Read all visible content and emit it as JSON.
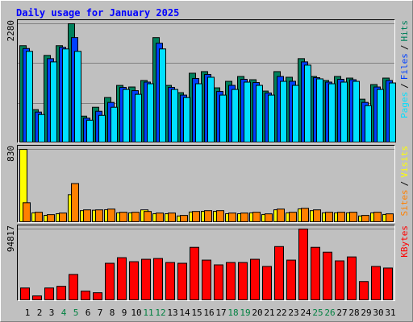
{
  "title": "Daily usage for January 2025",
  "legend_separator": "/",
  "categories": [
    "1",
    "2",
    "3",
    "4",
    "5",
    "6",
    "7",
    "8",
    "9",
    "10",
    "11",
    "12",
    "13",
    "14",
    "15",
    "16",
    "17",
    "18",
    "19",
    "20",
    "21",
    "22",
    "23",
    "24",
    "25",
    "26",
    "27",
    "28",
    "29",
    "30",
    "31"
  ],
  "highlighted_categories": [
    "4",
    "5",
    "11",
    "12",
    "18",
    "19",
    "25",
    "26"
  ],
  "highlight_color": "#008040",
  "chart_data": [
    {
      "type": "bar",
      "ylim": [
        0,
        2280
      ],
      "yticks": [
        2280
      ],
      "series": [
        {
          "name": "Hits",
          "color": "#00805c",
          "values": [
            1860,
            636,
            1674,
            1860,
            2280,
            512,
            682,
            868,
            1100,
            1070,
            1194,
            2015,
            1100,
            961,
            1333,
            1364,
            1054,
            1178,
            1271,
            1209,
            992,
            1364,
            1256,
            1612,
            1271,
            1194,
            1271,
            1240,
            837,
            1116,
            1240
          ]
        },
        {
          "name": "Files",
          "color": "#0040ff",
          "values": [
            1806,
            590,
            1612,
            1829,
            2016,
            473,
            605,
            775,
            1062,
            1000,
            1163,
            1907,
            1062,
            915,
            1233,
            1310,
            985,
            1101,
            1217,
            1155,
            954,
            1271,
            1179,
            1550,
            1248,
            1163,
            1217,
            1209,
            775,
            1070,
            1194
          ]
        },
        {
          "name": "Pages",
          "color": "#00e0ff",
          "values": [
            1752,
            543,
            1550,
            1798,
            1752,
            434,
            527,
            682,
            1023,
            930,
            1132,
            1798,
            1023,
            868,
            1132,
            1256,
            915,
            1023,
            1163,
            1101,
            915,
            1178,
            1101,
            1488,
            1225,
            1132,
            1163,
            1178,
            713,
            1023,
            1147
          ]
        }
      ]
    },
    {
      "type": "bar",
      "ylim": [
        0,
        830
      ],
      "yticks": [
        830
      ],
      "series": [
        {
          "name": "Visits",
          "color": "#ffff00",
          "values": [
            830,
            110,
            82,
            100,
            316,
            135,
            140,
            145,
            110,
            110,
            144,
            100,
            100,
            75,
            120,
            128,
            128,
            100,
            100,
            110,
            92,
            145,
            110,
            155,
            135,
            110,
            110,
            110,
            75,
            110,
            92
          ]
        },
        {
          "name": "Sites",
          "color": "#ff8000",
          "values": [
            225,
            117,
            90,
            108,
            442,
            144,
            144,
            153,
            117,
            117,
            126,
            108,
            108,
            81,
            126,
            135,
            135,
            108,
            108,
            117,
            99,
            153,
            117,
            162,
            144,
            117,
            117,
            117,
            81,
            117,
            99
          ]
        }
      ]
    },
    {
      "type": "bar",
      "ylim": [
        0,
        94817
      ],
      "yticks": [
        94817
      ],
      "series": [
        {
          "name": "KBytes",
          "color": "#ff0000",
          "values": [
            16800,
            6300,
            16800,
            19000,
            34700,
            12600,
            10500,
            49500,
            56900,
            51600,
            54800,
            55800,
            50500,
            49500,
            70600,
            53700,
            47400,
            50500,
            50500,
            54800,
            45300,
            71600,
            53700,
            94817,
            70600,
            64200,
            52700,
            57900,
            25300,
            45300,
            43200
          ]
        }
      ]
    }
  ]
}
